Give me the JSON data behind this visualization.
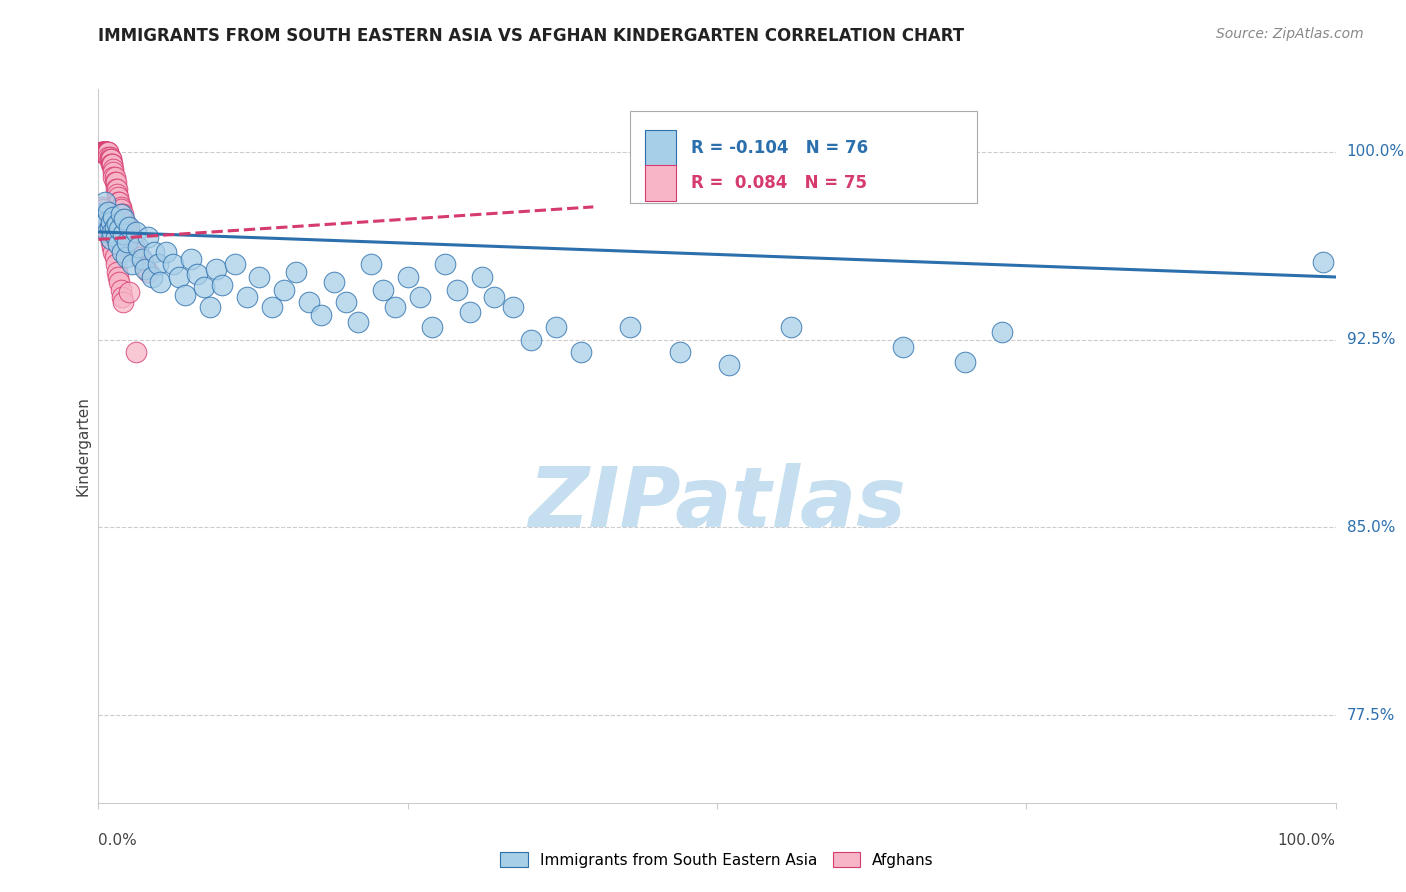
{
  "title": "IMMIGRANTS FROM SOUTH EASTERN ASIA VS AFGHAN KINDERGARTEN CORRELATION CHART",
  "source": "Source: ZipAtlas.com",
  "ylabel": "Kindergarten",
  "ytick_labels": [
    "100.0%",
    "92.5%",
    "85.0%",
    "77.5%"
  ],
  "ytick_values": [
    1.0,
    0.925,
    0.85,
    0.775
  ],
  "legend_blue_r": "-0.104",
  "legend_blue_n": "76",
  "legend_pink_r": "0.084",
  "legend_pink_n": "75",
  "legend_label_blue": "Immigrants from South Eastern Asia",
  "legend_label_pink": "Afghans",
  "blue_color": "#a8cfe8",
  "pink_color": "#f7b6c8",
  "trendline_blue_color": "#2c6fad",
  "trendline_pink_color": "#d63b6e",
  "blue_scatter_x": [
    0.003,
    0.005,
    0.006,
    0.007,
    0.008,
    0.009,
    0.01,
    0.01,
    0.011,
    0.012,
    0.013,
    0.014,
    0.015,
    0.016,
    0.017,
    0.018,
    0.019,
    0.02,
    0.021,
    0.022,
    0.023,
    0.025,
    0.027,
    0.03,
    0.032,
    0.035,
    0.038,
    0.04,
    0.043,
    0.045,
    0.048,
    0.05,
    0.055,
    0.06,
    0.065,
    0.07,
    0.075,
    0.08,
    0.085,
    0.09,
    0.095,
    0.1,
    0.11,
    0.12,
    0.13,
    0.14,
    0.15,
    0.16,
    0.17,
    0.18,
    0.19,
    0.2,
    0.21,
    0.22,
    0.23,
    0.24,
    0.25,
    0.26,
    0.27,
    0.28,
    0.29,
    0.3,
    0.31,
    0.32,
    0.335,
    0.35,
    0.37,
    0.39,
    0.43,
    0.47,
    0.51,
    0.56,
    0.65,
    0.7,
    0.73,
    0.99
  ],
  "blue_scatter_y": [
    0.975,
    0.98,
    0.972,
    0.968,
    0.976,
    0.97,
    0.965,
    0.972,
    0.968,
    0.974,
    0.97,
    0.966,
    0.971,
    0.963,
    0.969,
    0.975,
    0.96,
    0.967,
    0.973,
    0.958,
    0.964,
    0.97,
    0.955,
    0.968,
    0.962,
    0.957,
    0.953,
    0.966,
    0.95,
    0.96,
    0.955,
    0.948,
    0.96,
    0.955,
    0.95,
    0.943,
    0.957,
    0.951,
    0.946,
    0.938,
    0.953,
    0.947,
    0.955,
    0.942,
    0.95,
    0.938,
    0.945,
    0.952,
    0.94,
    0.935,
    0.948,
    0.94,
    0.932,
    0.955,
    0.945,
    0.938,
    0.95,
    0.942,
    0.93,
    0.955,
    0.945,
    0.936,
    0.95,
    0.942,
    0.938,
    0.925,
    0.93,
    0.92,
    0.93,
    0.92,
    0.915,
    0.93,
    0.922,
    0.916,
    0.928,
    0.956
  ],
  "pink_scatter_x": [
    0.002,
    0.003,
    0.003,
    0.004,
    0.004,
    0.004,
    0.005,
    0.005,
    0.005,
    0.006,
    0.006,
    0.007,
    0.007,
    0.007,
    0.008,
    0.008,
    0.008,
    0.009,
    0.009,
    0.01,
    0.01,
    0.01,
    0.011,
    0.011,
    0.012,
    0.012,
    0.012,
    0.013,
    0.013,
    0.014,
    0.014,
    0.015,
    0.015,
    0.016,
    0.016,
    0.017,
    0.018,
    0.018,
    0.019,
    0.02,
    0.02,
    0.021,
    0.022,
    0.023,
    0.024,
    0.025,
    0.026,
    0.028,
    0.03,
    0.032,
    0.034,
    0.036,
    0.038,
    0.04,
    0.003,
    0.004,
    0.005,
    0.006,
    0.007,
    0.008,
    0.009,
    0.01,
    0.011,
    0.012,
    0.013,
    0.014,
    0.015,
    0.016,
    0.017,
    0.018,
    0.019,
    0.02,
    0.022,
    0.025,
    0.03
  ],
  "pink_scatter_y": [
    1.0,
    1.0,
    1.0,
    1.0,
    1.0,
    1.0,
    1.0,
    1.0,
    1.0,
    1.0,
    1.0,
    1.0,
    1.0,
    1.0,
    1.0,
    1.0,
    0.998,
    0.998,
    0.997,
    0.997,
    0.997,
    0.995,
    0.995,
    0.995,
    0.993,
    0.992,
    0.99,
    0.99,
    0.988,
    0.988,
    0.985,
    0.985,
    0.983,
    0.982,
    0.98,
    0.98,
    0.978,
    0.977,
    0.975,
    0.975,
    0.973,
    0.972,
    0.971,
    0.97,
    0.968,
    0.967,
    0.965,
    0.963,
    0.961,
    0.96,
    0.958,
    0.956,
    0.954,
    0.952,
    0.978,
    0.977,
    0.975,
    0.972,
    0.97,
    0.968,
    0.966,
    0.964,
    0.962,
    0.96,
    0.958,
    0.955,
    0.952,
    0.95,
    0.948,
    0.945,
    0.942,
    0.94,
    0.965,
    0.944,
    0.92
  ],
  "xlim": [
    0.0,
    1.0
  ],
  "ylim": [
    0.74,
    1.025
  ],
  "watermark_text": "ZIPatlas",
  "watermark_color": "#c5dff0",
  "grid_color": "#cccccc",
  "blue_trendline_x0": 0.0,
  "blue_trendline_x1": 1.0,
  "blue_trendline_y0": 0.968,
  "blue_trendline_y1": 0.95,
  "pink_trendline_x0": 0.0,
  "pink_trendline_x1": 0.4,
  "pink_trendline_y0": 0.965,
  "pink_trendline_y1": 0.978
}
